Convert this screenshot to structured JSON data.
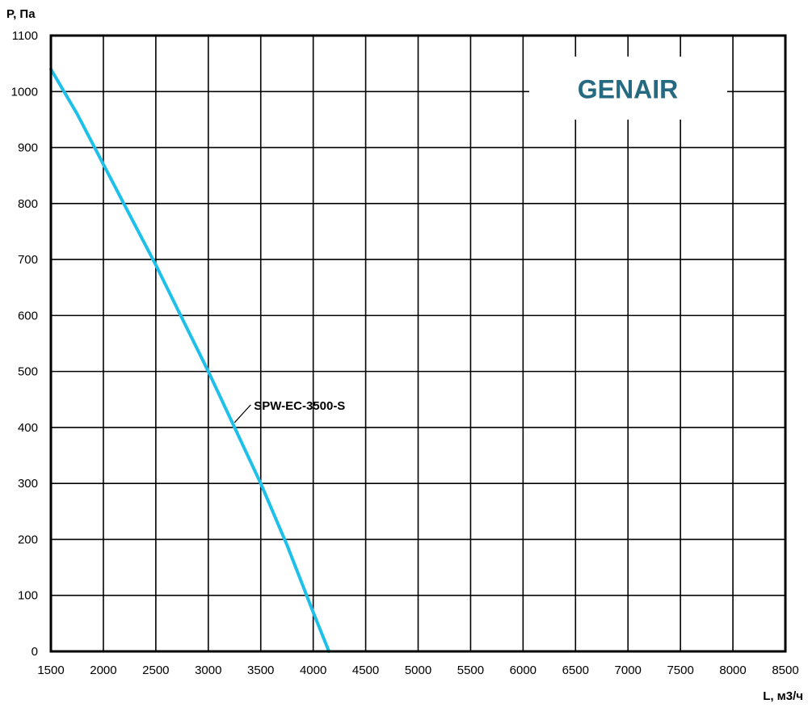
{
  "chart_data": {
    "type": "line",
    "title": "",
    "xlabel": "L, м3/ч",
    "ylabel": "P, Па",
    "xlim": [
      1500,
      8500
    ],
    "ylim": [
      0,
      1100
    ],
    "x_ticks": [
      "1500",
      "2000",
      "2500",
      "3000",
      "3500",
      "4000",
      "4500",
      "5000",
      "5500",
      "6000",
      "6500",
      "7000",
      "7500",
      "8000",
      "8500"
    ],
    "y_ticks": [
      "0",
      "100",
      "200",
      "300",
      "400",
      "500",
      "600",
      "700",
      "800",
      "900",
      "1000",
      "1100"
    ],
    "grid": true,
    "series": [
      {
        "name": "SPW-EC-3500-S",
        "color": "#1ec0ea",
        "x": [
          1500,
          1750,
          2000,
          2250,
          2500,
          2750,
          3000,
          3250,
          3500,
          3750,
          4000,
          4150
        ],
        "y": [
          1040,
          960,
          870,
          780,
          690,
          595,
          500,
          400,
          300,
          190,
          70,
          0
        ]
      }
    ],
    "annotation": {
      "text": "SPW-EC-3500-S",
      "x": 3250,
      "y": 400
    }
  },
  "logo": {
    "text": "GENAIR",
    "color": "#256a80"
  },
  "colors": {
    "grid": "#000000",
    "frame": "#000000"
  }
}
